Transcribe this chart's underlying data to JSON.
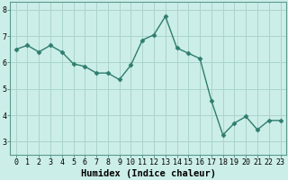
{
  "x": [
    0,
    1,
    2,
    3,
    4,
    5,
    6,
    7,
    8,
    9,
    10,
    11,
    12,
    13,
    14,
    15,
    16,
    17,
    18,
    19,
    20,
    21,
    22,
    23
  ],
  "y": [
    6.5,
    6.65,
    6.4,
    6.65,
    6.4,
    5.95,
    5.85,
    5.6,
    5.6,
    5.35,
    5.9,
    6.85,
    7.05,
    7.75,
    6.55,
    6.35,
    6.15,
    4.55,
    3.25,
    3.7,
    3.95,
    3.45,
    3.8,
    3.8
  ],
  "line_color": "#2e7d6e",
  "marker": "D",
  "marker_size": 2.5,
  "bg_color": "#cceee8",
  "grid_color": "#aad4cc",
  "xlabel": "Humidex (Indice chaleur)",
  "xlabel_fontsize": 7.5,
  "ylim": [
    2.5,
    8.3
  ],
  "xlim": [
    -0.5,
    23.5
  ],
  "yticks": [
    3,
    4,
    5,
    6,
    7,
    8
  ],
  "xticks": [
    0,
    1,
    2,
    3,
    4,
    5,
    6,
    7,
    8,
    9,
    10,
    11,
    12,
    13,
    14,
    15,
    16,
    17,
    18,
    19,
    20,
    21,
    22,
    23
  ],
  "tick_fontsize": 6.0,
  "line_width": 1.0
}
